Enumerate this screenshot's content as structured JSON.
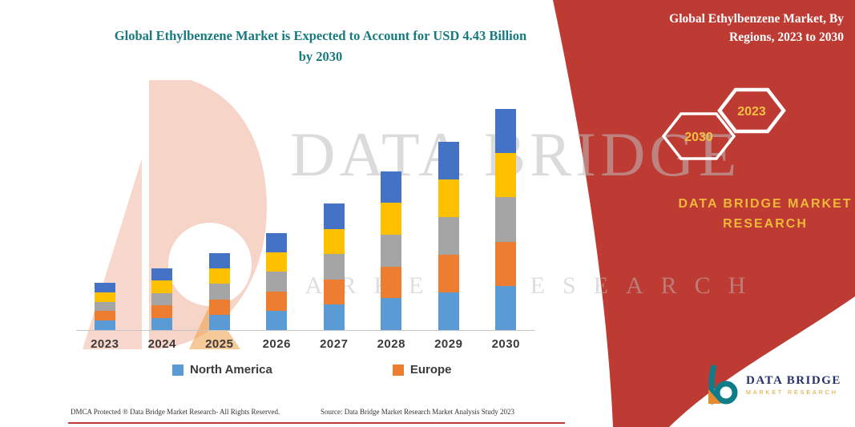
{
  "header": {
    "chart_title": "Global Ethylbenzene Market is Expected to Account for USD 4.43 Billion by 2030"
  },
  "banner": {
    "title": "Global Ethylbenzene Market, By Regions, 2023 to 2030",
    "hexagon_years": [
      "2030",
      "2023"
    ],
    "brand_name": "DATA BRIDGE MARKET RESEARCH",
    "background_color": "#BE3B33",
    "accent_text_color": "#EFB939"
  },
  "watermark": {
    "line1": "DATA BRIDGE",
    "line2": "MARKET RESEARCH"
  },
  "legend": {
    "items": [
      {
        "label": "North America",
        "color": "#5B9BD5"
      },
      {
        "label": "Europe",
        "color": "#ED7D31"
      }
    ]
  },
  "chart_data": {
    "type": "bar",
    "stacked": true,
    "title": "Global Ethylbenzene Market is Expected to Account for USD 4.43 Billion by 2030",
    "unit": "USD Billion",
    "categories": [
      "2023",
      "2024",
      "2025",
      "2026",
      "2027",
      "2028",
      "2029",
      "2030"
    ],
    "totals_estimated": [
      0.95,
      1.25,
      1.55,
      1.95,
      2.55,
      3.2,
      3.8,
      4.45
    ],
    "series": [
      {
        "name": "North America",
        "color": "#5B9BD5",
        "values": [
          0.19,
          0.25,
          0.31,
          0.39,
          0.51,
          0.64,
          0.76,
          0.89
        ]
      },
      {
        "name": "Europe",
        "color": "#ED7D31",
        "values": [
          0.19,
          0.25,
          0.31,
          0.39,
          0.51,
          0.64,
          0.76,
          0.89
        ]
      },
      {
        "name": "",
        "color": "#A5A5A5",
        "values": [
          0.19,
          0.25,
          0.31,
          0.39,
          0.51,
          0.64,
          0.76,
          0.89
        ]
      },
      {
        "name": "",
        "color": "#FFC000",
        "values": [
          0.19,
          0.25,
          0.31,
          0.39,
          0.51,
          0.64,
          0.76,
          0.89
        ]
      },
      {
        "name": "",
        "color": "#4472C4",
        "values": [
          0.19,
          0.25,
          0.31,
          0.39,
          0.51,
          0.64,
          0.76,
          0.89
        ]
      }
    ],
    "xlabel": "",
    "ylabel": "",
    "ylim": [
      0,
      4.6
    ],
    "grid": false,
    "legend_position": "bottom",
    "legend_visible_series": [
      "North America",
      "Europe"
    ]
  },
  "footer": {
    "dmca": "DMCA Protected ® Data Bridge Market Research-  All Rights Reserved.",
    "source": "Source: Data Bridge Market Research  Market Analysis Study 2023"
  },
  "logo": {
    "name": "DATA BRIDGE",
    "tagline": "MARKET RESEARCH"
  }
}
